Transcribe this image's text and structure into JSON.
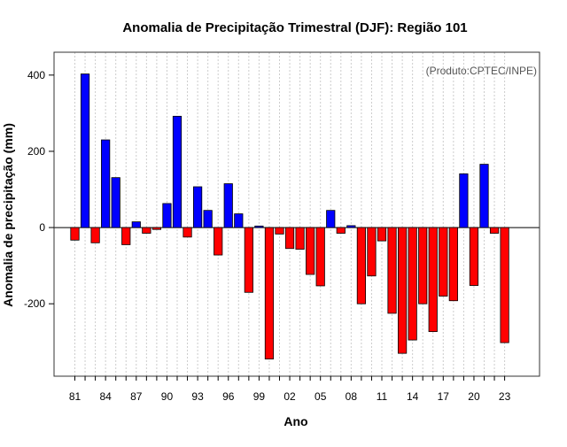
{
  "chart_data": {
    "type": "bar",
    "title": "Anomalia de Precipitação Trimestral (DJF): Região 101",
    "xlabel": "Ano",
    "ylabel": "Anomalia de precipitação (mm)",
    "annotation": "(Produto:CPTEC/INPE)",
    "years": [
      1981,
      1982,
      1983,
      1984,
      1985,
      1986,
      1987,
      1988,
      1989,
      1990,
      1991,
      1992,
      1993,
      1994,
      1995,
      1996,
      1997,
      1998,
      1999,
      2000,
      2001,
      2002,
      2003,
      2004,
      2005,
      2006,
      2007,
      2008,
      2009,
      2010,
      2011,
      2012,
      2013,
      2014,
      2015,
      2016,
      2017,
      2018,
      2019,
      2020,
      2021,
      2022,
      2023
    ],
    "values": [
      -33,
      403,
      -40,
      230,
      131,
      -45,
      15,
      -15,
      -5,
      63,
      292,
      -25,
      107,
      45,
      -72,
      115,
      36,
      -170,
      4,
      -345,
      -17,
      -55,
      -57,
      -123,
      -153,
      45,
      -15,
      5,
      -200,
      -127,
      -35,
      -225,
      -330,
      -295,
      -200,
      -273,
      -180,
      -192,
      141,
      -152,
      166,
      -15,
      -302
    ],
    "x_ticks": [
      "81",
      "84",
      "87",
      "90",
      "93",
      "96",
      "99",
      "02",
      "05",
      "08",
      "11",
      "14",
      "17",
      "20",
      "23"
    ],
    "y_ticks": [
      -200,
      0,
      200,
      400
    ],
    "ylim": [
      -390,
      460
    ],
    "colors": {
      "positive": "#0000ff",
      "negative": "#ff0000",
      "outline": "#000000",
      "grid": "#cccccc",
      "zero_line": "#000000"
    },
    "grid": true
  }
}
